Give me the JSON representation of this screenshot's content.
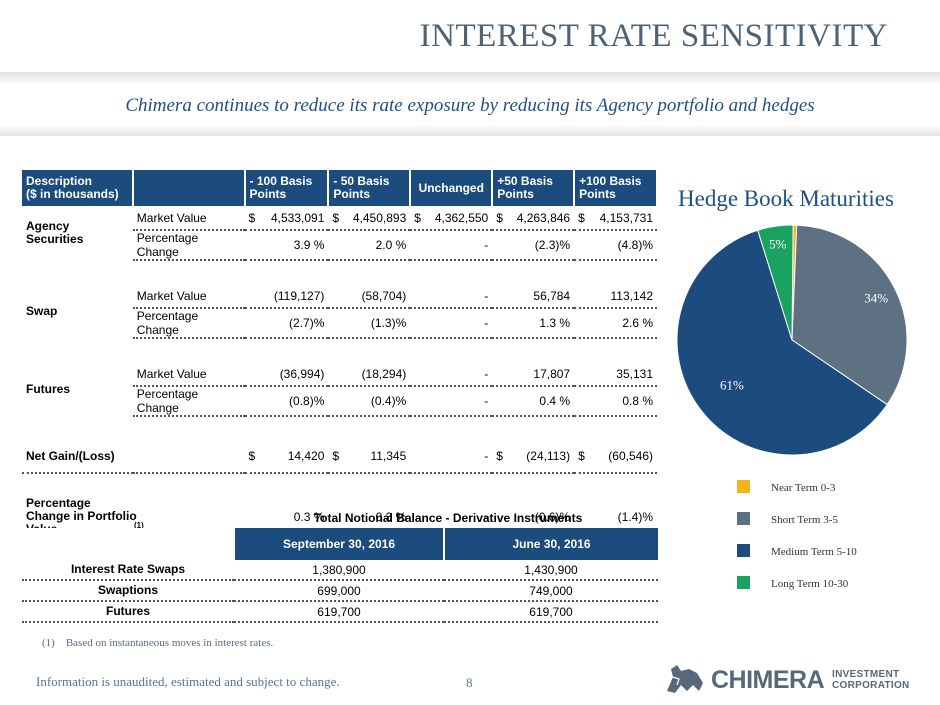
{
  "header": {
    "title": "INTEREST RATE SENSITIVITY",
    "subtitle": "Chimera continues to reduce its rate exposure by reducing its Agency portfolio and hedges"
  },
  "sensitivity_table": {
    "headers": [
      "Description\n($ in thousands)",
      "",
      "- 100 Basis\nPoints",
      "- 50 Basis\nPoints",
      "Unchanged",
      "+50 Basis\nPoints",
      "+100 Basis\nPoints"
    ],
    "agency": {
      "label": "Agency Securities",
      "mv_label": "Market Value",
      "mv": [
        "$",
        "4,533,091",
        "$",
        "4,450,893",
        "$",
        "4,362,550",
        "$",
        "4,263,846",
        "$",
        "4,153,731"
      ],
      "pc_label": "Percentage Change",
      "pc": [
        "3.9 %",
        "2.0 %",
        "-",
        "(2.3)%",
        "(4.8)%"
      ]
    },
    "swap": {
      "label": "Swap",
      "mv_label": "Market Value",
      "mv": [
        "(119,127)",
        "(58,704)",
        "-",
        "56,784",
        "113,142"
      ],
      "pc_label": "Percentage Change",
      "pc": [
        "(2.7)%",
        "(1.3)%",
        "-",
        "1.3 %",
        "2.6 %"
      ]
    },
    "futures": {
      "label": "Futures",
      "mv_label": "Market Value",
      "mv": [
        "(36,994)",
        "(18,294)",
        "-",
        "17,807",
        "35,131"
      ],
      "pc_label": "Percentage Change",
      "pc": [
        "(0.8)%",
        "(0.4)%",
        "-",
        "0.4 %",
        "0.8 %"
      ]
    },
    "net": {
      "label": "Net Gain/(Loss)",
      "values": [
        "$",
        "14,420",
        "$",
        "11,345",
        "",
        "-",
        "$",
        "(24,113)",
        "$",
        "(60,546)"
      ]
    },
    "portfolio": {
      "label": "Percentage Change in Portfolio Value",
      "sup": "(1)",
      "values": [
        "0.3 %",
        "0.3 %",
        "-",
        "(0.6)%",
        "(1.4)%"
      ]
    }
  },
  "notional": {
    "title": "Total Notional Balance - Derivative Instruments",
    "col1": "September 30, 2016",
    "col2": "June 30, 2016",
    "rows": [
      {
        "label": "Interest Rate Swaps",
        "v1": "1,380,900",
        "v2": "1,430,900"
      },
      {
        "label": "Swaptions",
        "v1": "699,000",
        "v2": "749,000"
      },
      {
        "label": "Futures",
        "v1": "619,700",
        "v2": "619,700"
      }
    ]
  },
  "chart_data": {
    "type": "pie",
    "title": "Hedge Book Maturities",
    "categories": [
      "Near Term 0-3",
      "Short Term 3-5",
      "Medium Term 5-10",
      "Long Term 10-30"
    ],
    "values": [
      0.5,
      34,
      61,
      5
    ],
    "labels": [
      "",
      "34%",
      "61%",
      "5%"
    ],
    "colors": [
      "#f5b31c",
      "#5d7182",
      "#1c4b7d",
      "#1aa260"
    ]
  },
  "footnote": "(1)    Based on instantaneous moves in interest rates.",
  "footer": {
    "disclaimer": "Information is unaudited, estimated and subject to change.",
    "page": "8"
  },
  "logo": {
    "word": "CHIMERA",
    "line1": "INVESTMENT",
    "line2": "CORPORATION"
  }
}
